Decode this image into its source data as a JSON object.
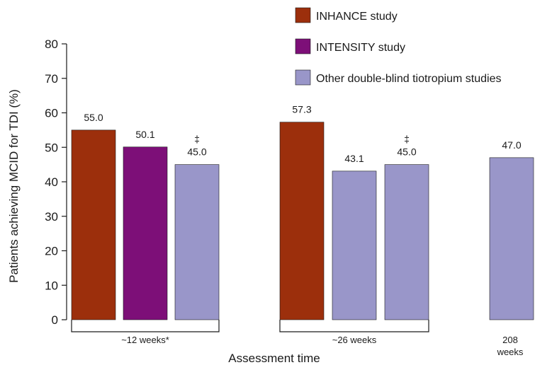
{
  "chart_data": {
    "type": "bar",
    "title": "",
    "ylabel": "Patients achieving MCID for TDI (%)",
    "xlabel": "Assessment time",
    "ylim": [
      0,
      80
    ],
    "yticks": [
      "0",
      "10",
      "20",
      "30",
      "40",
      "50",
      "60",
      "70",
      "80"
    ],
    "legend_placement": "top-right",
    "series": [
      {
        "name": "INHANCE study",
        "color": "#9c2f0c"
      },
      {
        "name": "INTENSITY study",
        "color": "#7d0f78"
      },
      {
        "name": "Other double-blind tiotropium studies",
        "color": "#9996c9"
      }
    ],
    "groups": [
      {
        "label": "~12 weeks*",
        "bars": [
          {
            "series": 0,
            "value": 55.0,
            "label": "55.0",
            "mark": ""
          },
          {
            "series": 1,
            "value": 50.1,
            "label": "50.1",
            "mark": ""
          },
          {
            "series": 2,
            "value": 45.0,
            "label": "45.0",
            "mark": "‡"
          }
        ]
      },
      {
        "label": "~26 weeks",
        "bars": [
          {
            "series": 0,
            "value": 57.3,
            "label": "57.3",
            "mark": ""
          },
          {
            "series": 2,
            "value": 43.1,
            "label": "43.1",
            "mark": ""
          },
          {
            "series": 2,
            "value": 45.0,
            "label": "45.0",
            "mark": "‡"
          }
        ]
      },
      {
        "label": "208\nweeks",
        "bars": [
          {
            "series": 2,
            "value": 47.0,
            "label": "47.0",
            "mark": ""
          }
        ]
      }
    ]
  }
}
